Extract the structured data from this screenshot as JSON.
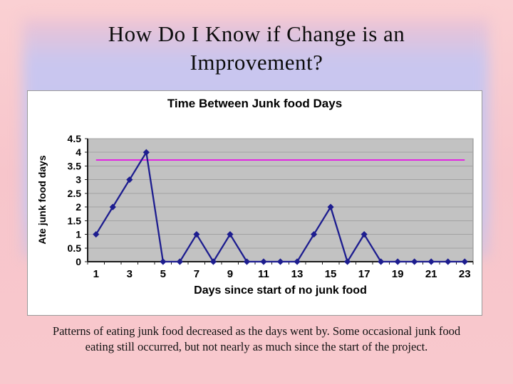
{
  "slide": {
    "title_line1": "How Do I Know if Change is an",
    "title_line2": "Improvement?",
    "caption": "Patterns of eating junk food decreased as the days went by.  Some occasional junk food eating still occurred, but not nearly as much since the start of the project."
  },
  "chart_data": {
    "type": "line",
    "title": "Time Between Junk food Days",
    "xlabel": "Days since start of no junk food",
    "ylabel": "Ate junk food days",
    "x": [
      1,
      2,
      3,
      4,
      5,
      6,
      7,
      8,
      9,
      10,
      11,
      12,
      13,
      14,
      15,
      16,
      17,
      18,
      19,
      20,
      21,
      22,
      23
    ],
    "xtick_labels": [
      1,
      3,
      5,
      7,
      9,
      11,
      13,
      15,
      17,
      19,
      21,
      23
    ],
    "ylim": [
      0,
      4.5
    ],
    "ytick_step": 0.5,
    "grid": true,
    "legend_position": "none",
    "plot_bg": "#c2c2c2",
    "grid_color": "#a2a2a2",
    "plot_border": "#8a8a8a",
    "axis_color": "#1a1a1a",
    "series": [
      {
        "name": "Ate junk food days",
        "marker": "diamond",
        "color": "#1d1d8f",
        "values": [
          1,
          2,
          3,
          4,
          0,
          0,
          1,
          0,
          1,
          0,
          0,
          0,
          0,
          1,
          2,
          0,
          1,
          0,
          0,
          0,
          0,
          0,
          0
        ]
      }
    ],
    "ref_line": {
      "value": 3.72,
      "color": "#e226e2"
    }
  },
  "colors": {
    "background_pink": "#f8c8cd",
    "panel_lavender": "#c7c5ef",
    "chart_box_bg": "#ffffff",
    "chart_box_border": "#999999",
    "title_text": "#0c0c0c"
  }
}
